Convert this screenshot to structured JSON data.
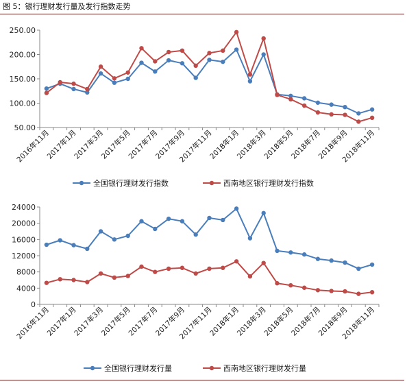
{
  "figure": {
    "title": "图 5：银行理财发行量及发行指数走势"
  },
  "chart_data": [
    {
      "type": "line",
      "ylim": [
        50,
        250
      ],
      "yticks": [
        "50.00",
        "100.00",
        "150.00",
        "200.00",
        "250.00"
      ],
      "ytick_values": [
        50,
        100,
        150,
        200,
        250
      ],
      "grid": false,
      "legend_position": "bottom",
      "x": [
        "2016年11月",
        "2016年12月",
        "2017年1月",
        "2017年2月",
        "2017年3月",
        "2017年4月",
        "2017年5月",
        "2017年6月",
        "2017年7月",
        "2017年8月",
        "2017年9月",
        "2017年10月",
        "2017年11月",
        "2017年12月",
        "2018年1月",
        "2018年2月",
        "2018年3月",
        "2018年4月",
        "2018年5月",
        "2018年6月",
        "2018年7月",
        "2018年8月",
        "2018年9月",
        "2018年10月",
        "2018年11月"
      ],
      "xtick_labels": [
        "2016年11月",
        "2017年1月",
        "2017年3月",
        "2017年5月",
        "2017年7月",
        "2017年9月",
        "2017年11月",
        "2018年1月",
        "2018年3月",
        "2018年5月",
        "2018年7月",
        "2018年9月",
        "2018年11月"
      ],
      "series": [
        {
          "name": "全国银行理财发行指数",
          "color": "#4a7ebb",
          "values": [
            130,
            140,
            129,
            122,
            161,
            142,
            150,
            183,
            165,
            188,
            182,
            152,
            189,
            185,
            210,
            145,
            200,
            118,
            115,
            110,
            101,
            97,
            92,
            79,
            87
          ]
        },
        {
          "name": "西南地区银行理财发行指数",
          "color": "#be4b48",
          "values": [
            121,
            143,
            140,
            129,
            175,
            151,
            163,
            213,
            186,
            205,
            208,
            177,
            203,
            208,
            246,
            159,
            233,
            117,
            108,
            95,
            81,
            77,
            76,
            62,
            70
          ]
        }
      ]
    },
    {
      "type": "line",
      "ylim": [
        0,
        24000
      ],
      "yticks": [
        "0",
        "4000",
        "8000",
        "12000",
        "16000",
        "20000",
        "24000"
      ],
      "ytick_values": [
        0,
        4000,
        8000,
        12000,
        16000,
        20000,
        24000
      ],
      "grid": false,
      "legend_position": "bottom",
      "x": [
        "2016年11月",
        "2016年12月",
        "2017年1月",
        "2017年2月",
        "2017年3月",
        "2017年4月",
        "2017年5月",
        "2017年6月",
        "2017年7月",
        "2017年8月",
        "2017年9月",
        "2017年10月",
        "2017年11月",
        "2017年12月",
        "2018年1月",
        "2018年2月",
        "2018年3月",
        "2018年4月",
        "2018年5月",
        "2018年6月",
        "2018年7月",
        "2018年8月",
        "2018年9月",
        "2018年10月",
        "2018年11月"
      ],
      "xtick_labels": [
        "2016年11月",
        "2017年1月",
        "2017年3月",
        "2017年5月",
        "2017年7月",
        "2017年9月",
        "2017年11月",
        "2018年1月",
        "2018年3月",
        "2018年5月",
        "2018年7月",
        "2018年9月",
        "2018年11月"
      ],
      "series": [
        {
          "name": "全国银行理财发行量",
          "color": "#4a7ebb",
          "values": [
            14700,
            15800,
            14600,
            13700,
            18000,
            16000,
            16900,
            20500,
            18600,
            21100,
            20500,
            17200,
            21300,
            20800,
            23600,
            16300,
            22500,
            13200,
            12800,
            12300,
            11200,
            10800,
            10300,
            8800,
            9800
          ]
        },
        {
          "name": "西南地区银行理财发行量",
          "color": "#be4b48",
          "values": [
            5300,
            6200,
            6000,
            5500,
            7600,
            6600,
            7000,
            9300,
            8000,
            8800,
            9000,
            7600,
            8800,
            9000,
            10600,
            6900,
            10200,
            5200,
            4700,
            4100,
            3500,
            3300,
            3200,
            2600,
            3000
          ]
        }
      ]
    }
  ]
}
